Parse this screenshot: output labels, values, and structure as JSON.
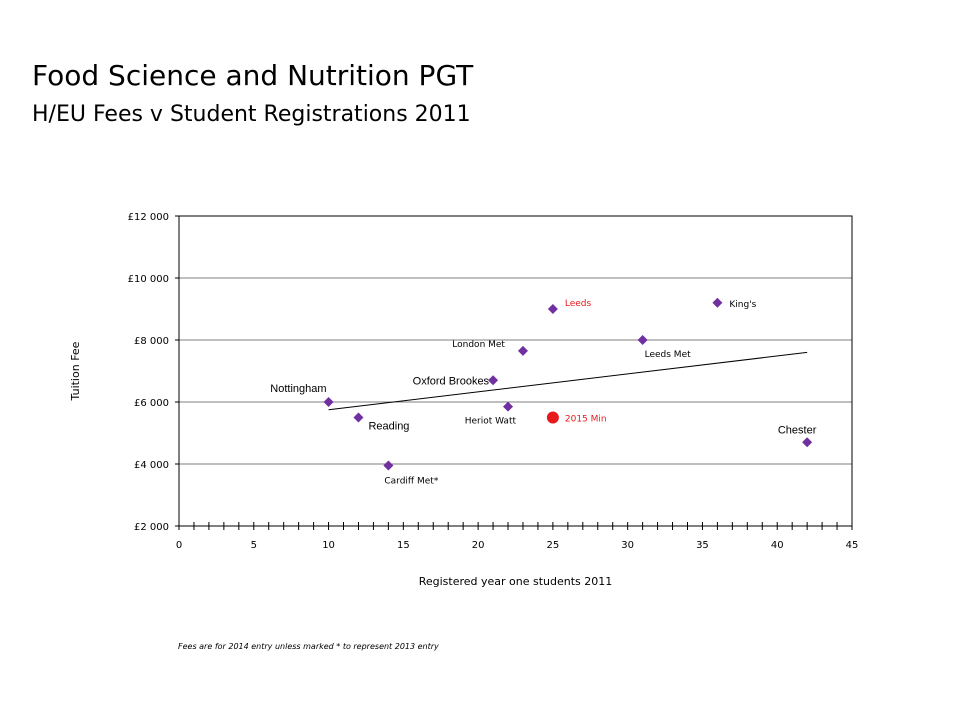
{
  "slide": {
    "title": "Food Science and Nutrition PGT",
    "subtitle": "H/EU Fees v Student Registrations 2011",
    "footnote": "Fees are for 2014 entry unless marked * to represent 2013 entry"
  },
  "colors": {
    "marker": "#7030a0",
    "highlight": "#e8191c",
    "highlight_text": "#e8191c",
    "axis": "#000000",
    "grid": "#7f7f7f"
  },
  "chart_data": {
    "type": "scatter",
    "title": "",
    "xlabel": "Registered year one students 2011",
    "ylabel": "Tuition Fee",
    "xlim": [
      0,
      45
    ],
    "ylim": [
      2000,
      12000
    ],
    "x_ticks": [
      0,
      5,
      10,
      15,
      20,
      25,
      30,
      35,
      40,
      45
    ],
    "x_tick_labels": [
      "0",
      "5",
      "10",
      "15",
      "20",
      "25",
      "30",
      "35",
      "40",
      "45"
    ],
    "y_ticks": [
      2000,
      4000,
      6000,
      8000,
      10000,
      12000
    ],
    "y_tick_labels": [
      "£2 000",
      "£4 000",
      "£6 000",
      "£8 000",
      "£10 000",
      "£12 000"
    ],
    "grid": "horizontal",
    "points": [
      {
        "label": "Nottingham",
        "x": 10,
        "y": 6000
      },
      {
        "label": "Reading",
        "x": 12,
        "y": 5500
      },
      {
        "label": "Cardiff Met*",
        "x": 14,
        "y": 3950
      },
      {
        "label": "Oxford Brookes",
        "x": 21,
        "y": 6700
      },
      {
        "label": "Heriot Watt",
        "x": 22,
        "y": 5850
      },
      {
        "label": "London Met",
        "x": 23,
        "y": 7650
      },
      {
        "label": "Leeds",
        "x": 25,
        "y": 9000
      },
      {
        "label": "Leeds Met",
        "x": 31,
        "y": 8000
      },
      {
        "label": "King's",
        "x": 36,
        "y": 9200
      },
      {
        "label": "Chester",
        "x": 42,
        "y": 4700
      }
    ],
    "highlight_point": {
      "label": "2015 Min",
      "x": 25,
      "y": 5500
    },
    "trendline": {
      "x1": 10,
      "y1": 5750,
      "x2": 42,
      "y2": 7600
    }
  }
}
